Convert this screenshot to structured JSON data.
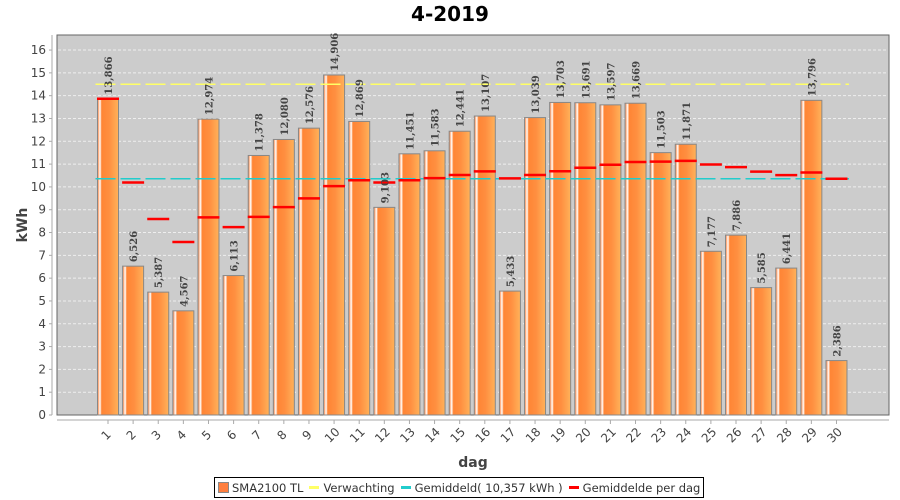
{
  "chart_data": {
    "type": "bar",
    "title": "4-2019",
    "xlabel": "dag",
    "ylabel": "kWh",
    "ylim": [
      0,
      16.66
    ],
    "yticks": [
      "0",
      "1",
      "2",
      "3",
      "4",
      "5",
      "6",
      "7",
      "8",
      "9",
      "10",
      "11",
      "12",
      "13",
      "14",
      "15",
      "16"
    ],
    "grid": true,
    "categories": [
      "1",
      "2",
      "3",
      "4",
      "5",
      "6",
      "7",
      "8",
      "9",
      "10",
      "11",
      "12",
      "13",
      "14",
      "15",
      "16",
      "17",
      "18",
      "19",
      "20",
      "21",
      "22",
      "23",
      "24",
      "25",
      "26",
      "27",
      "28",
      "29",
      "30"
    ],
    "series": [
      {
        "name": "SMA2100 TL",
        "kind": "bar",
        "color": "#ff8a3d",
        "values": [
          13.866,
          6.526,
          5.387,
          4.567,
          12.974,
          6.113,
          11.378,
          12.08,
          12.576,
          14.906,
          12.869,
          9.103,
          11.451,
          11.583,
          12.441,
          13.107,
          5.433,
          13.039,
          13.703,
          13.691,
          13.597,
          13.669,
          11.503,
          11.871,
          7.177,
          7.886,
          5.585,
          6.441,
          13.796,
          2.386
        ],
        "labels": [
          "13,866",
          "6,526",
          "5,387",
          "4,567",
          "12,974",
          "6,113",
          "11,378",
          "12,080",
          "12,576",
          "14,906",
          "12,869",
          "9,103",
          "11,451",
          "11,583",
          "12,441",
          "13,107",
          "5,433",
          "13,039",
          "13,703",
          "13,691",
          "13,597",
          "13,669",
          "11,503",
          "11,871",
          "7,177",
          "7,886",
          "5,585",
          "6,441",
          "13,796",
          "2,386"
        ]
      },
      {
        "name": "Verwachting",
        "kind": "dashed-line",
        "color": "#ffff66",
        "value": 14.5
      },
      {
        "name": "Gemiddeld( 10,357 kWh )",
        "kind": "dashed-line",
        "color": "#22cccc",
        "value": 10.357
      },
      {
        "name": "Gemiddelde per dag",
        "kind": "marker",
        "color": "#ff0000",
        "values": [
          13.866,
          10.196,
          8.593,
          7.587,
          8.664,
          8.239,
          8.687,
          9.111,
          9.496,
          10.037,
          10.294,
          10.195,
          10.291,
          10.383,
          10.52,
          10.682,
          10.373,
          10.521,
          10.688,
          10.838,
          10.97,
          11.092,
          11.11,
          11.142,
          10.984,
          10.865,
          10.67,
          10.519,
          10.632,
          10.357
        ]
      }
    ],
    "legend_position": "bottom"
  },
  "legend": {
    "items": [
      {
        "label": "SMA2100 TL",
        "color": "#ff7f3f",
        "kind": "box"
      },
      {
        "label": "Verwachting",
        "color": "#ffff66",
        "kind": "line"
      },
      {
        "label": "Gemiddeld( 10,357 kWh )",
        "color": "#22cccc",
        "kind": "line"
      },
      {
        "label": "Gemiddelde per dag",
        "color": "#ff0000",
        "kind": "line"
      }
    ]
  }
}
